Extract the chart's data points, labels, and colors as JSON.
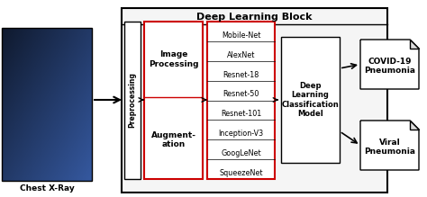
{
  "title": "Deep Learning Block",
  "xray_label": "Chest X-Ray",
  "preprocessing_label": "Preprocessing",
  "img_proc_label": "Image\nProcessing",
  "augment_label": "Augment-\nation",
  "networks": [
    "Mobile-Net",
    "AlexNet",
    "Resnet-18",
    "Resnet-50",
    "Resnet-101",
    "Inception-V3",
    "GoogLeNet",
    "SqueezeNet"
  ],
  "classification_label": "Deep\nLearning\nClassification\nModel",
  "output1_label": "COVID-19\nPneumonia",
  "output2_label": "Viral\nPneumonia",
  "bg_color": "#ffffff",
  "box_color": "#ffffff",
  "border_color": "#000000",
  "red_border": "#cc0000",
  "outer_box_color": "#e8e8e8",
  "text_color": "#000000"
}
